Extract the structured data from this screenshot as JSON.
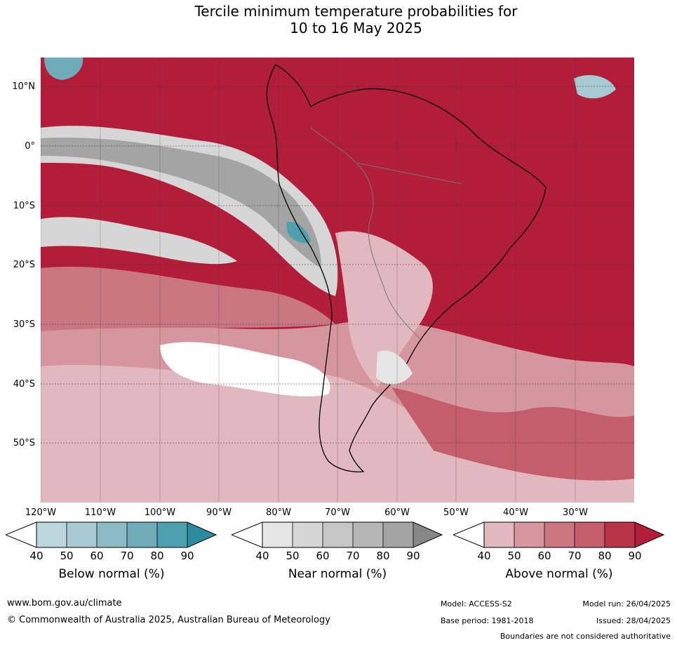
{
  "title_line1": "Tercile minimum temperature probabilities for",
  "title_line2": "10 to 16 May 2025",
  "colors": {
    "above": [
      "#e0b8bd",
      "#d5969d",
      "#c97680",
      "#c45e6c",
      "#b93447",
      "#b21d3a"
    ],
    "near": [
      "#e6e6e6",
      "#d6d6d6",
      "#c6c6c6",
      "#b6b6b6",
      "#a4a4a4",
      "#878787"
    ],
    "below": [
      "#bcd6dc",
      "#a7c9d1",
      "#8cbac5",
      "#6fabb8",
      "#4ea0ae",
      "#2c8b9f"
    ],
    "ocean_grid": "#000000"
  },
  "lat_labels": [
    "10°N",
    "0°",
    "10°S",
    "20°S",
    "30°S",
    "40°S",
    "50°S"
  ],
  "lon_labels": [
    "120°W",
    "110°W",
    "100°W",
    "90°W",
    "80°W",
    "70°W",
    "60°W",
    "50°W",
    "40°W",
    "30°W"
  ],
  "colorbars": {
    "below": {
      "title": "Below normal (%)",
      "ticks": [
        "40",
        "50",
        "60",
        "70",
        "80",
        "90"
      ]
    },
    "near": {
      "title": "Near normal (%)",
      "ticks": [
        "40",
        "50",
        "60",
        "70",
        "80",
        "90"
      ]
    },
    "above": {
      "title": "Above normal (%)",
      "ticks": [
        "40",
        "50",
        "60",
        "70",
        "80",
        "90"
      ]
    }
  },
  "footer": {
    "website": "www.bom.gov.au/climate",
    "copyright": "© Commonwealth of Australia 2025, Australian Bureau of Meteorology",
    "model": "Model: ACCESS-S2",
    "model_run": "Model run: 26/04/2025",
    "base_period": "Base period: 1981-2018",
    "issued": "Issued: 28/04/2025",
    "disclaimer": "Boundaries are not considered authoritative"
  }
}
